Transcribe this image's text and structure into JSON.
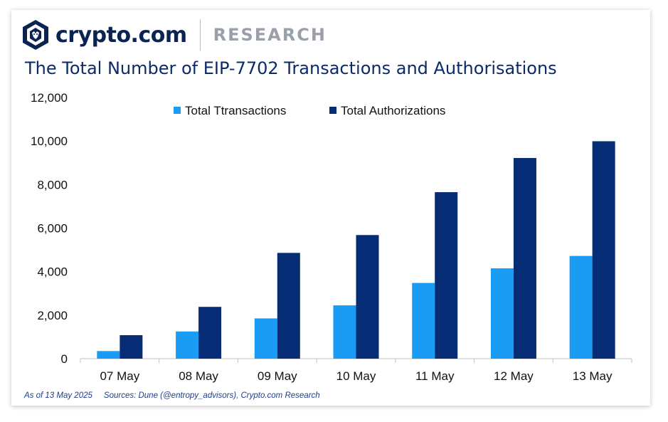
{
  "brand": {
    "name": "crypto.com",
    "section": "RESEARCH"
  },
  "colors": {
    "transactions": "#1a9cf5",
    "authorizations": "#052c75",
    "title": "#0b2a6b"
  },
  "footnote": {
    "as_of": "As of 13 May 2025",
    "sources": "Sources: Dune (@entropy_advisors), Crypto.com Research"
  },
  "chart_data": {
    "type": "bar",
    "title": "The Total Number of EIP-7702 Transactions and Authorisations",
    "categories": [
      "07 May",
      "08 May",
      "09 May",
      "10 May",
      "11 May",
      "12 May",
      "13 May"
    ],
    "series": [
      {
        "name": "Total Ttransactions",
        "values": [
          350,
          1250,
          1850,
          2450,
          3480,
          4150,
          4720
        ]
      },
      {
        "name": "Total Authorizations",
        "values": [
          1080,
          2380,
          4860,
          5680,
          7650,
          9220,
          9990
        ]
      }
    ],
    "ylim": [
      0,
      12000
    ],
    "yticks": [
      "0",
      "2,000",
      "4,000",
      "6,000",
      "8,000",
      "10,000",
      "12,000"
    ],
    "grid": false,
    "legend": "top-center"
  }
}
